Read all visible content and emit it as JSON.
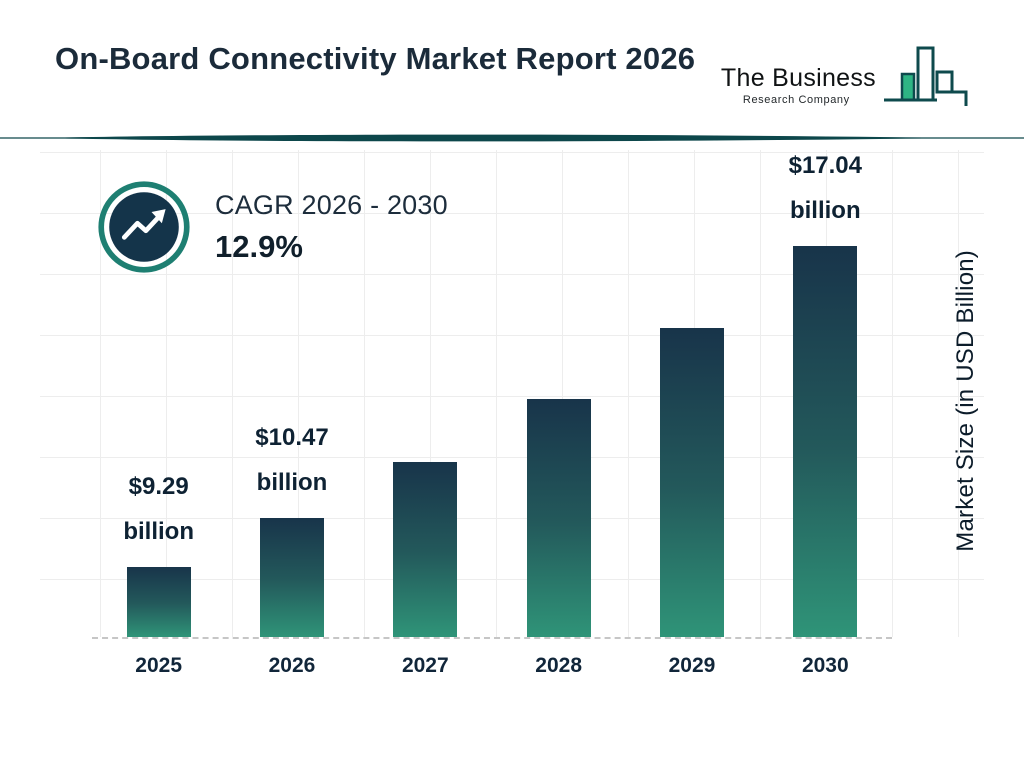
{
  "header": {
    "title": "On-Board Connectivity Market Report 2026",
    "logo": {
      "line1": "The Business",
      "line2": "Research Company"
    }
  },
  "cagr": {
    "label": "CAGR 2026 - 2030",
    "value": "12.9%"
  },
  "chart_data": {
    "type": "bar",
    "title": "On-Board Connectivity Market Report 2026",
    "categories": [
      "2025",
      "2026",
      "2027",
      "2028",
      "2029",
      "2030"
    ],
    "values": [
      9.29,
      10.47,
      11.82,
      13.35,
      15.07,
      17.04
    ],
    "value_labels": [
      {
        "line1": "$9.29",
        "line2": "billion"
      },
      {
        "line1": "$10.47",
        "line2": "billion"
      },
      null,
      null,
      null,
      {
        "line1": "$17.04",
        "line2": "billion"
      }
    ],
    "xlabel": "",
    "ylabel": "Market Size (in USD Billion)",
    "ylim": [
      7.6,
      18
    ],
    "grid": true,
    "legend_position": "none",
    "colors": {
      "bar_gradient_top": "#18344a",
      "bar_gradient_bottom": "#2f9478",
      "accent_teal": "#0d474b",
      "ring_teal": "#1e7f72",
      "badge_navy": "#14344a",
      "text_dark": "#13293d",
      "grid_line": "#ededed"
    }
  }
}
